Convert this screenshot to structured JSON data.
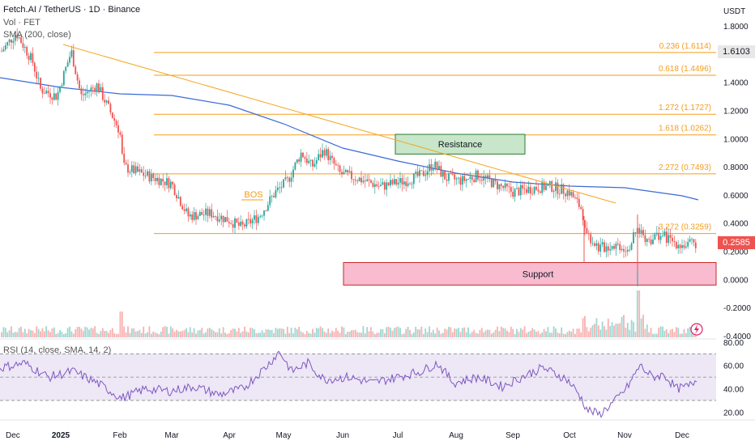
{
  "header": {
    "title": "Fetch.AI / TetherUS · 1D · Binance",
    "vol_label": "Vol · FET",
    "sma_label": "SMA (200, close)",
    "currency": "USDT"
  },
  "colors": {
    "up": "#26a69a",
    "down": "#ef5350",
    "fib": "#f59c1a",
    "sma": "#3b6bd6",
    "trend": "#f5a623",
    "rsi": "#7e57c2",
    "rsi_band": "#ede7f6",
    "resistance_fill": "#c8e6c9",
    "resistance_border": "#2e7d32",
    "support_fill": "#f8bbd0",
    "support_border": "#c62828"
  },
  "badges": {
    "level": "1.6103",
    "last": "0.2585"
  },
  "chart_data": [
    {
      "type": "candlestick",
      "title": "Fetch.AI / TetherUS · 1D · Binance",
      "y_unit": "USDT",
      "y_ticks": [
        "1.8000",
        "1.6000",
        "1.4000",
        "1.2000",
        "1.0000",
        "0.8000",
        "0.6000",
        "0.4000",
        "0.2000",
        "0.0000",
        "-0.2000",
        "-0.4000"
      ],
      "ylim": [
        -0.4,
        1.85
      ],
      "x_ticks": [
        "Dec",
        "2025",
        "Feb",
        "Mar",
        "Apr",
        "May",
        "Jun",
        "Jul",
        "Aug",
        "Sep",
        "Oct",
        "Nov",
        "Dec"
      ],
      "fib_levels": [
        {
          "label": "0.236 (1.6114)",
          "value": 1.6114
        },
        {
          "label": "0.618 (1.4496)",
          "value": 1.4496
        },
        {
          "label": "1.272 (1.1727)",
          "value": 1.1727
        },
        {
          "label": "1.618 (1.0262)",
          "value": 1.0262
        },
        {
          "label": "2.272 (0.7493)",
          "value": 0.7493
        },
        {
          "label": "3.272 (0.3259)",
          "value": 0.3259
        }
      ],
      "zones": [
        {
          "label": "Resistance",
          "top": 1.03,
          "bottom": 0.89
        },
        {
          "label": "Support",
          "top": 0.12,
          "bottom": -0.04
        }
      ],
      "annotations": [
        "BOS"
      ],
      "price_path": [
        [
          "Dec",
          1.62
        ],
        [
          "2025",
          1.3
        ],
        [
          "Feb",
          1.05
        ],
        [
          "Mar",
          0.66
        ],
        [
          "Apr",
          0.47
        ],
        [
          "Apr",
          0.37
        ],
        [
          "May",
          0.62
        ],
        [
          "May",
          0.9
        ],
        [
          "Jun",
          0.7
        ],
        [
          "Jul",
          0.65
        ],
        [
          "Aug",
          0.78
        ],
        [
          "Aug",
          0.68
        ],
        [
          "Sep",
          0.62
        ],
        [
          "Oct",
          0.62
        ],
        [
          "Oct",
          0.4
        ],
        [
          "Oct",
          0.26
        ],
        [
          "Nov",
          0.32
        ],
        [
          "Dec",
          0.2585
        ]
      ],
      "sma_path": [
        [
          "Dec",
          1.46
        ],
        [
          "2025",
          1.41
        ],
        [
          "Feb",
          1.32
        ],
        [
          "Apr",
          1.21
        ],
        [
          "May",
          1.07
        ],
        [
          "Jun",
          0.98
        ],
        [
          "Jul",
          0.87
        ],
        [
          "Aug",
          0.78
        ],
        [
          "Sep",
          0.72
        ],
        [
          "Oct",
          0.66
        ],
        [
          "Nov",
          0.64
        ],
        [
          "Dec",
          0.56
        ]
      ],
      "last_price": 0.2585
    },
    {
      "type": "line",
      "title": "RSI (14, close, SMA, 14, 2)",
      "y_ticks": [
        "80.00",
        "60.00",
        "40.00",
        "20.00"
      ],
      "ylim": [
        14,
        82
      ],
      "band": [
        30,
        70
      ],
      "midline": 50
    }
  ]
}
